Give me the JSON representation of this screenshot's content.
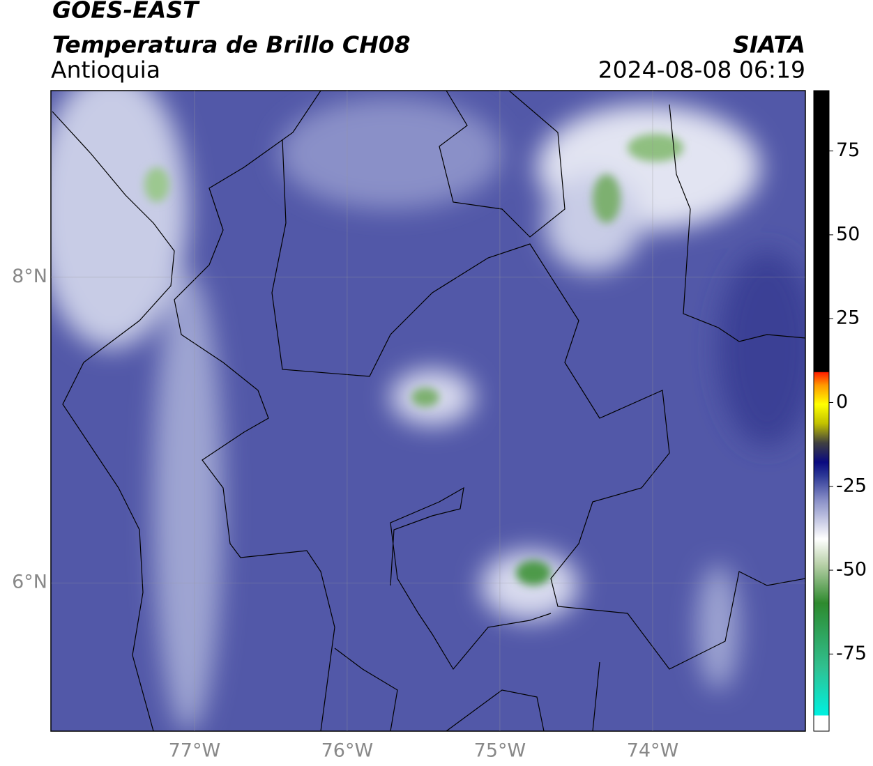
{
  "header": {
    "title": "GOES-EAST",
    "subtitle": "Temperatura de Brillo CH08",
    "region": "Antioquia",
    "source": "SIATA",
    "timestamp": "2024-08-08 06:19"
  },
  "map": {
    "xlim": [
      -77.94,
      -73.0
    ],
    "ylim": [
      5.03,
      9.22
    ],
    "xticks": [
      {
        "value": -77,
        "label": "77°W"
      },
      {
        "value": -76,
        "label": "76°W"
      },
      {
        "value": -75,
        "label": "75°W"
      },
      {
        "value": -74,
        "label": "74°W"
      }
    ],
    "yticks": [
      {
        "value": 8,
        "label": "8°N"
      },
      {
        "value": 6,
        "label": "6°N"
      }
    ],
    "grid": true
  },
  "colorbar": {
    "lim": [
      -98,
      93
    ],
    "ticks": [
      75,
      50,
      25,
      0,
      -25,
      -50,
      -75
    ]
  }
}
